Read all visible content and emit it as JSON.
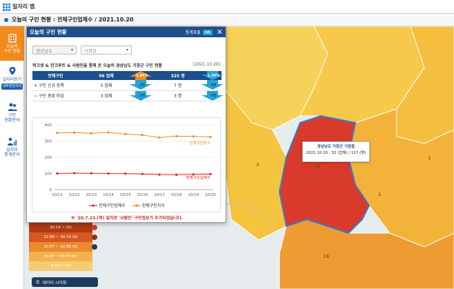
{
  "topbar": {
    "title": "일자리 맵"
  },
  "breadcrumb": {
    "text": "오늘의 구인 현황 : 전체구인업체수 / 2021.10.20"
  },
  "sidebar": {
    "items": [
      {
        "label": "오늘의\n구인 현황",
        "active": true
      },
      {
        "label": "일자리보기",
        "badge": "내주변일자리"
      },
      {
        "label": "구인\n현황분석"
      },
      {
        "label": "일자리\n통계분석"
      }
    ]
  },
  "panel": {
    "title": "오늘의 구인 현황",
    "stats_toggle_label": "통계표출",
    "toggle_state": "on",
    "region_select": "경상남도",
    "district_select": "거창군",
    "description": "워크넷 & 인크루트 & 사람인을 통해 본 오늘의 경상남도 거창군 구인 현황",
    "date": "[2021.10.20]",
    "table": {
      "headers": [
        "전체구인",
        "96 업체",
        "",
        "325 명",
        ""
      ],
      "rows": [
        {
          "sign": "+",
          "label": "구인 신규 등록",
          "companies": "5 업체",
          "company_change": "2개",
          "people": "7 명",
          "people_change": "4명"
        },
        {
          "sign": "−",
          "label": "구인 종료 마감",
          "companies": "3 업체",
          "company_change": "2개",
          "people": "3 명",
          "people_change": "0명"
        }
      ],
      "header_pct_companies": "1.05%",
      "header_pct_people": "1.26%"
    },
    "note": "※ '20.7.23.(목) 일자로 '사람인' 구인정보가 추가되었습니다."
  },
  "chart_data": {
    "type": "line",
    "categories": [
      "10/11",
      "10/12",
      "10/13",
      "10/14",
      "10/15",
      "10/16",
      "10/17",
      "10/18",
      "10/19",
      "10/20"
    ],
    "ylim": [
      0,
      400
    ],
    "yticks": [
      0,
      100,
      200,
      300,
      400
    ],
    "series": [
      {
        "name": "전체구인업체수",
        "color": "#e0201b",
        "values": [
          100,
          102,
          101,
          100,
          99,
          97,
          93,
          92,
          94,
          96
        ]
      },
      {
        "name": "전체구인자수",
        "color": "#f08a1c",
        "values": [
          350,
          352,
          348,
          353,
          343,
          337,
          322,
          330,
          329,
          325
        ]
      }
    ],
    "series_labels": [
      "전체구인자수",
      "전체구인업체수"
    ]
  },
  "tooltip": {
    "title": "경상남도 거창군 거창읍",
    "detail": "2021.10.20 : 52 (업체) / 117 (명)"
  },
  "map_numbers": [
    "3",
    "52",
    "1",
    "18",
    "1"
  ],
  "legend": {
    "rows": [
      {
        "label": "30.14 ~ (0)",
        "color": "#b03a12"
      },
      {
        "label": "22.86 ~ 30.14 (0)",
        "color": "#d8561f"
      },
      {
        "label": "15.57 ~ 22.86 (0)",
        "color": "#ea8a2e"
      },
      {
        "label": "8.29 ~ 15.57 (0)",
        "color": "#f3b24e"
      },
      {
        "label": "0.29 ~ (0)",
        "color": "#f6cc75"
      }
    ]
  },
  "data_button": "데이터 시각화"
}
